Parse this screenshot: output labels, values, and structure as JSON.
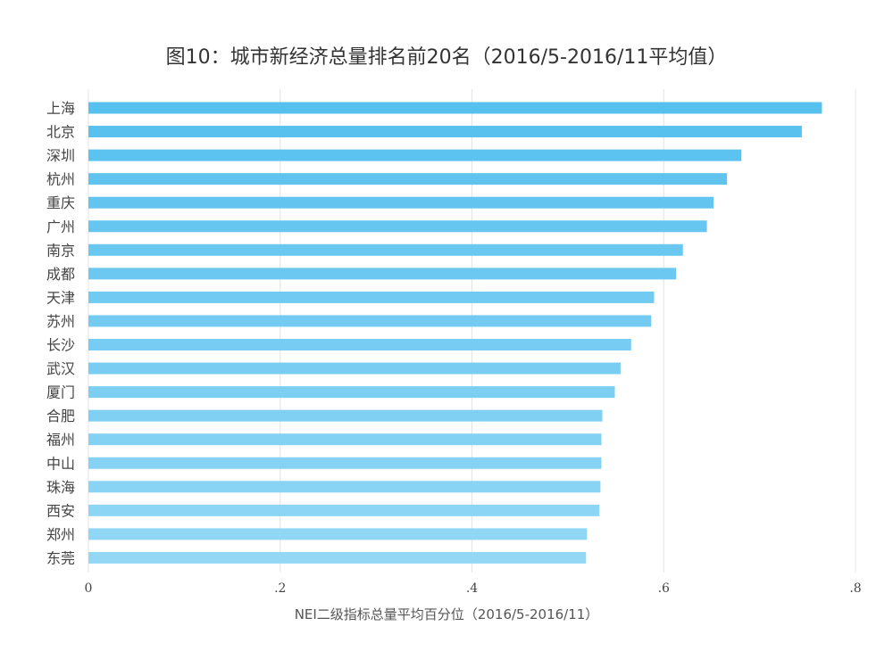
{
  "chart_data": {
    "type": "bar",
    "orientation": "horizontal",
    "title": "图10：城市新经济总量排名前20名（2016/5-2016/11平均值）",
    "xlabel": "NEI二级指标总量平均百分位（2016/5-2016/11）",
    "ylabel": "",
    "xlim": [
      0,
      0.8
    ],
    "xticks": [
      {
        "value": 0,
        "label": "0"
      },
      {
        "value": 0.2,
        "label": ".2"
      },
      {
        "value": 0.4,
        "label": ".4"
      },
      {
        "value": 0.6,
        "label": ".6"
      },
      {
        "value": 0.8,
        "label": ".8"
      }
    ],
    "grid": "vertical",
    "categories": [
      "上海",
      "北京",
      "深圳",
      "杭州",
      "重庆",
      "广州",
      "南京",
      "成都",
      "天津",
      "苏州",
      "长沙",
      "武汉",
      "厦门",
      "合肥",
      "福州",
      "中山",
      "珠海",
      "西安",
      "郑州",
      "东莞"
    ],
    "values": [
      0.765,
      0.744,
      0.681,
      0.666,
      0.652,
      0.645,
      0.62,
      0.613,
      0.59,
      0.587,
      0.566,
      0.555,
      0.549,
      0.536,
      0.535,
      0.535,
      0.534,
      0.533,
      0.52,
      0.519
    ],
    "color_start": "#56c0ee",
    "color_end": "#93d7f5"
  }
}
